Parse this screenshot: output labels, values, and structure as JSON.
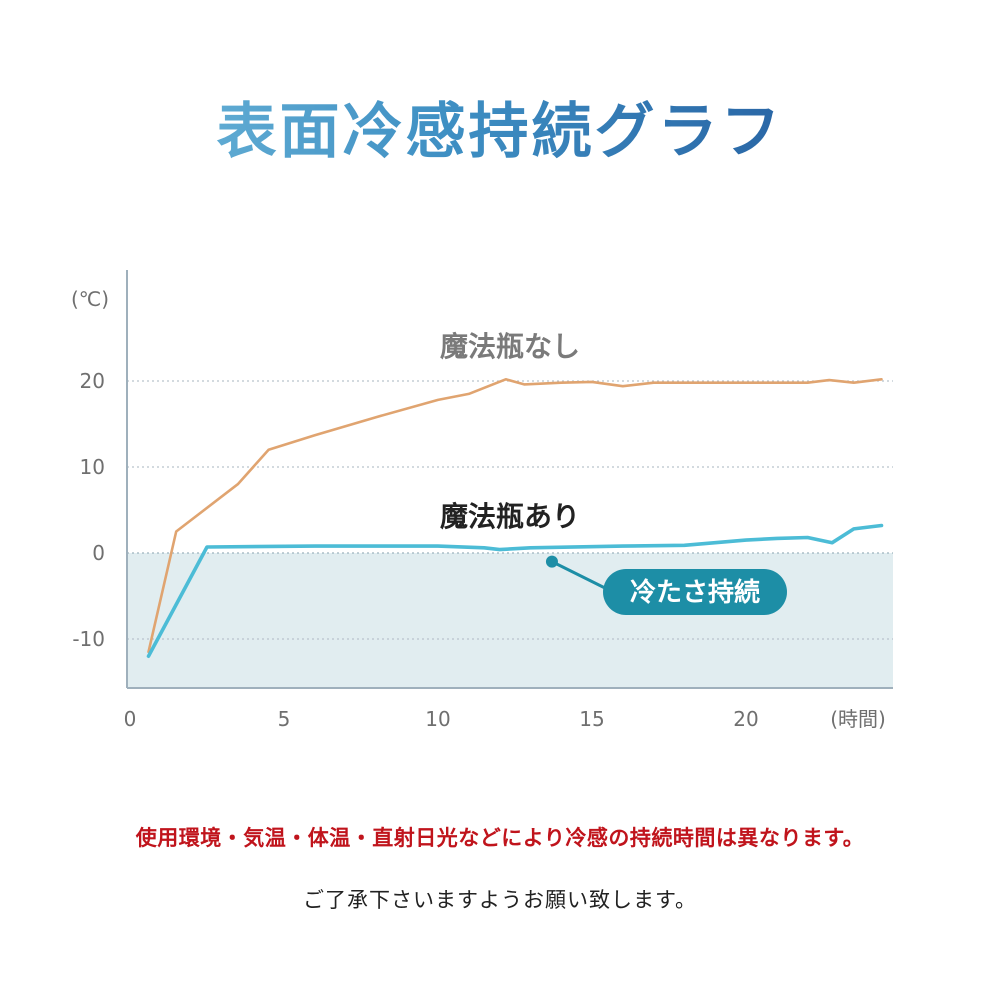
{
  "title": "表面冷感持続グラフ",
  "chart_data": {
    "type": "line",
    "title": "",
    "xlabel": "(時間)",
    "ylabel": "(℃)",
    "xlim": [
      0,
      24.5
    ],
    "ylim": [
      -15.5,
      33
    ],
    "x_ticks": [
      0,
      5,
      10,
      15,
      20
    ],
    "y_ticks": [
      20,
      10,
      0,
      -10
    ],
    "grid": "horizontal dotted",
    "shaded_region": {
      "y_from": -15.5,
      "y_to": 0,
      "color": "#e1edf0"
    },
    "series": [
      {
        "name": "魔法瓶なし",
        "color": "#e0a470",
        "x": [
          0.6,
          1.5,
          3.5,
          4.5,
          6,
          8,
          10,
          11,
          12.2,
          12.8,
          14,
          15,
          16,
          17,
          18,
          19,
          20,
          21,
          22,
          22.7,
          23.5,
          24.4
        ],
        "y": [
          -11.5,
          2.5,
          8,
          12,
          13.7,
          15.8,
          17.8,
          18.5,
          20.2,
          19.6,
          19.8,
          19.9,
          19.4,
          19.8,
          19.8,
          19.8,
          19.8,
          19.8,
          19.8,
          20.1,
          19.8,
          20.2
        ]
      },
      {
        "name": "魔法瓶あり",
        "color": "#4cbcd6",
        "x": [
          0.6,
          2.5,
          6,
          10,
          11.5,
          12,
          13,
          16,
          18,
          20,
          21,
          22,
          22.8,
          23.5,
          24.4
        ],
        "y": [
          -12,
          0.7,
          0.8,
          0.8,
          0.6,
          0.4,
          0.6,
          0.8,
          0.9,
          1.5,
          1.7,
          1.8,
          1.2,
          2.8,
          3.2
        ]
      }
    ],
    "annotation": {
      "text": "冷たさ持続",
      "x": 13.7,
      "y": -1.0
    }
  },
  "notes": {
    "warning": "使用環境・気温・体温・直射日光などにより冷感の持続時間は異なります。",
    "request": "ご了承下さいますようお願い致します。"
  }
}
